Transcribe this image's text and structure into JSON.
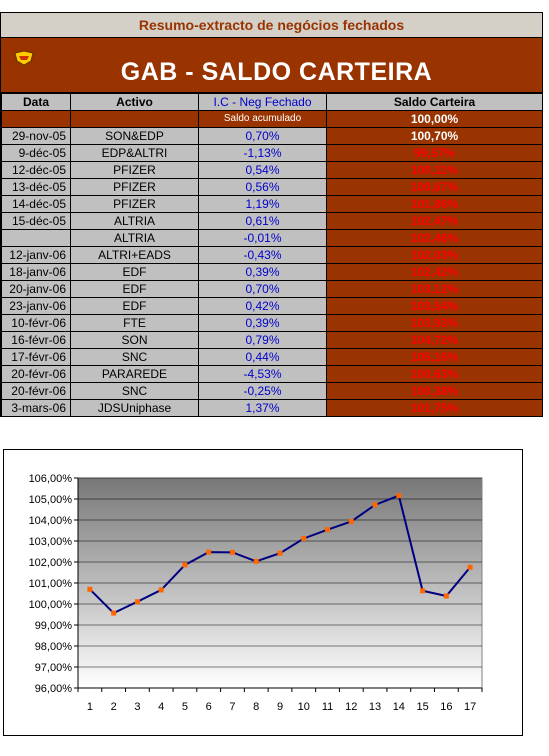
{
  "sheet": {
    "subtitle": "Resumo-extracto de negócios fechados",
    "title": "GAB  -  SALDO CARTEIRA",
    "headers": {
      "date": "Data",
      "asset": "Activo",
      "ic": "I.C - Neg Fechado",
      "saldo": "Saldo Carteira"
    },
    "accumulated_label": "Saldo acumulado",
    "accumulated_value": "100,00%",
    "rows": [
      {
        "date": "29-nov-05",
        "asset": "SON&EDP",
        "ic": "0,70%",
        "saldo": "100,70%"
      },
      {
        "date": "9-déc-05",
        "asset": "EDP&ALTRI",
        "ic": "-1,13%",
        "saldo": "99,57%"
      },
      {
        "date": "12-déc-05",
        "asset": "PFIZER",
        "ic": "0,54%",
        "saldo": "100,11%"
      },
      {
        "date": "13-déc-05",
        "asset": "PFIZER",
        "ic": "0,56%",
        "saldo": "100,67%"
      },
      {
        "date": "14-déc-05",
        "asset": "PFIZER",
        "ic": "1,19%",
        "saldo": "101,86%"
      },
      {
        "date": "15-déc-05",
        "asset": "ALTRIA",
        "ic": "0,61%",
        "saldo": "102,47%"
      },
      {
        "date": "",
        "asset": "ALTRIA",
        "ic": "-0,01%",
        "saldo": "102,46%"
      },
      {
        "date": "12-janv-06",
        "asset": "ALTRI+EADS",
        "ic": "-0,43%",
        "saldo": "102,03%"
      },
      {
        "date": "18-janv-06",
        "asset": "EDF",
        "ic": "0,39%",
        "saldo": "102,42%"
      },
      {
        "date": "20-janv-06",
        "asset": "EDF",
        "ic": "0,70%",
        "saldo": "103,12%"
      },
      {
        "date": "23-janv-06",
        "asset": "EDF",
        "ic": "0,42%",
        "saldo": "103,54%"
      },
      {
        "date": "10-févr-06",
        "asset": "FTE",
        "ic": "0,39%",
        "saldo": "103,93%"
      },
      {
        "date": "16-févr-06",
        "asset": "SON",
        "ic": "0,79%",
        "saldo": "104,72%"
      },
      {
        "date": "17-févr-06",
        "asset": "SNC",
        "ic": "0,44%",
        "saldo": "105,16%"
      },
      {
        "date": "20-févr-06",
        "asset": "PARAREDE",
        "ic": "-4,53%",
        "saldo": "100,63%"
      },
      {
        "date": "20-févr-06",
        "asset": "SNC",
        "ic": "-0,25%",
        "saldo": "100,38%"
      },
      {
        "date": "3-mars-06",
        "asset": "JDSUniphase",
        "ic": "1,37%",
        "saldo": "101,75%"
      }
    ]
  },
  "colors": {
    "header_bg": "#993300",
    "cell_bg": "#c0c0c0",
    "ic_text": "#0000cc",
    "saldo_text": "#ff0000",
    "line": "#000080",
    "marker": "#ff6600"
  },
  "chart_data": {
    "type": "line",
    "x": [
      1,
      2,
      3,
      4,
      5,
      6,
      7,
      8,
      9,
      10,
      11,
      12,
      13,
      14,
      15,
      16,
      17
    ],
    "series": [
      {
        "values": [
          100.7,
          99.57,
          100.11,
          100.67,
          101.86,
          102.47,
          102.46,
          102.03,
          102.42,
          103.12,
          103.54,
          103.93,
          104.72,
          105.16,
          100.63,
          100.38,
          101.75
        ]
      }
    ],
    "ylim": [
      96,
      106
    ],
    "yticks": [
      "96,00%",
      "97,00%",
      "98,00%",
      "99,00%",
      "100,00%",
      "101,00%",
      "102,00%",
      "103,00%",
      "104,00%",
      "105,00%",
      "106,00%"
    ],
    "xticks": [
      "1",
      "2",
      "3",
      "4",
      "5",
      "6",
      "7",
      "8",
      "9",
      "10",
      "11",
      "12",
      "13",
      "14",
      "15",
      "16",
      "17"
    ],
    "grid": true,
    "legend": "none"
  }
}
